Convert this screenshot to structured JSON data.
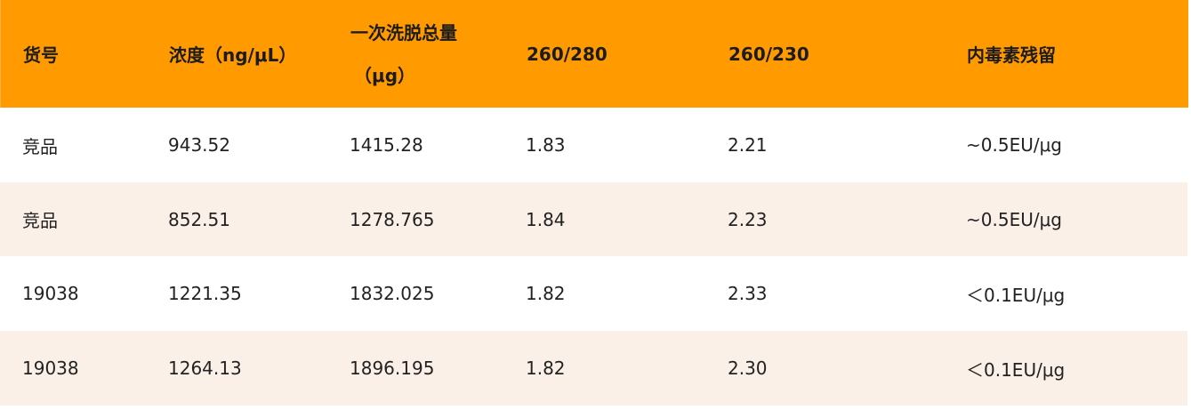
{
  "header": {
    "col1": "货号",
    "col2": "浓度（ng/μL）",
    "col3_line1": "一次洗脱总量",
    "col3_line2": "（μg）",
    "col4": "260/280",
    "col5": "260/230",
    "col6": "内毒素残留"
  },
  "rows": [
    {
      "id": "竞品",
      "conc": "943.52",
      "total": "1415.28",
      "r280": "1.83",
      "r230": "2.21",
      "endo": "~0.5EU/μg"
    },
    {
      "id": "竞品",
      "conc": "852.51",
      "total": "1278.765",
      "r280": "1.84",
      "r230": "2.23",
      "endo": "~0.5EU/μg"
    },
    {
      "id": "19038",
      "conc": "1221.35",
      "total": "1832.025",
      "r280": "1.82",
      "r230": "2.33",
      "endo": "＜0.1EU/μg"
    },
    {
      "id": "19038",
      "conc": "1264.13",
      "total": "1896.195",
      "r280": "1.82",
      "r230": "2.30",
      "endo": "＜0.1EU/μg"
    }
  ],
  "colors": {
    "header_bg": "#ff9a00",
    "row_alt_bg": "#fbf0e8",
    "row_bg": "#ffffff"
  }
}
